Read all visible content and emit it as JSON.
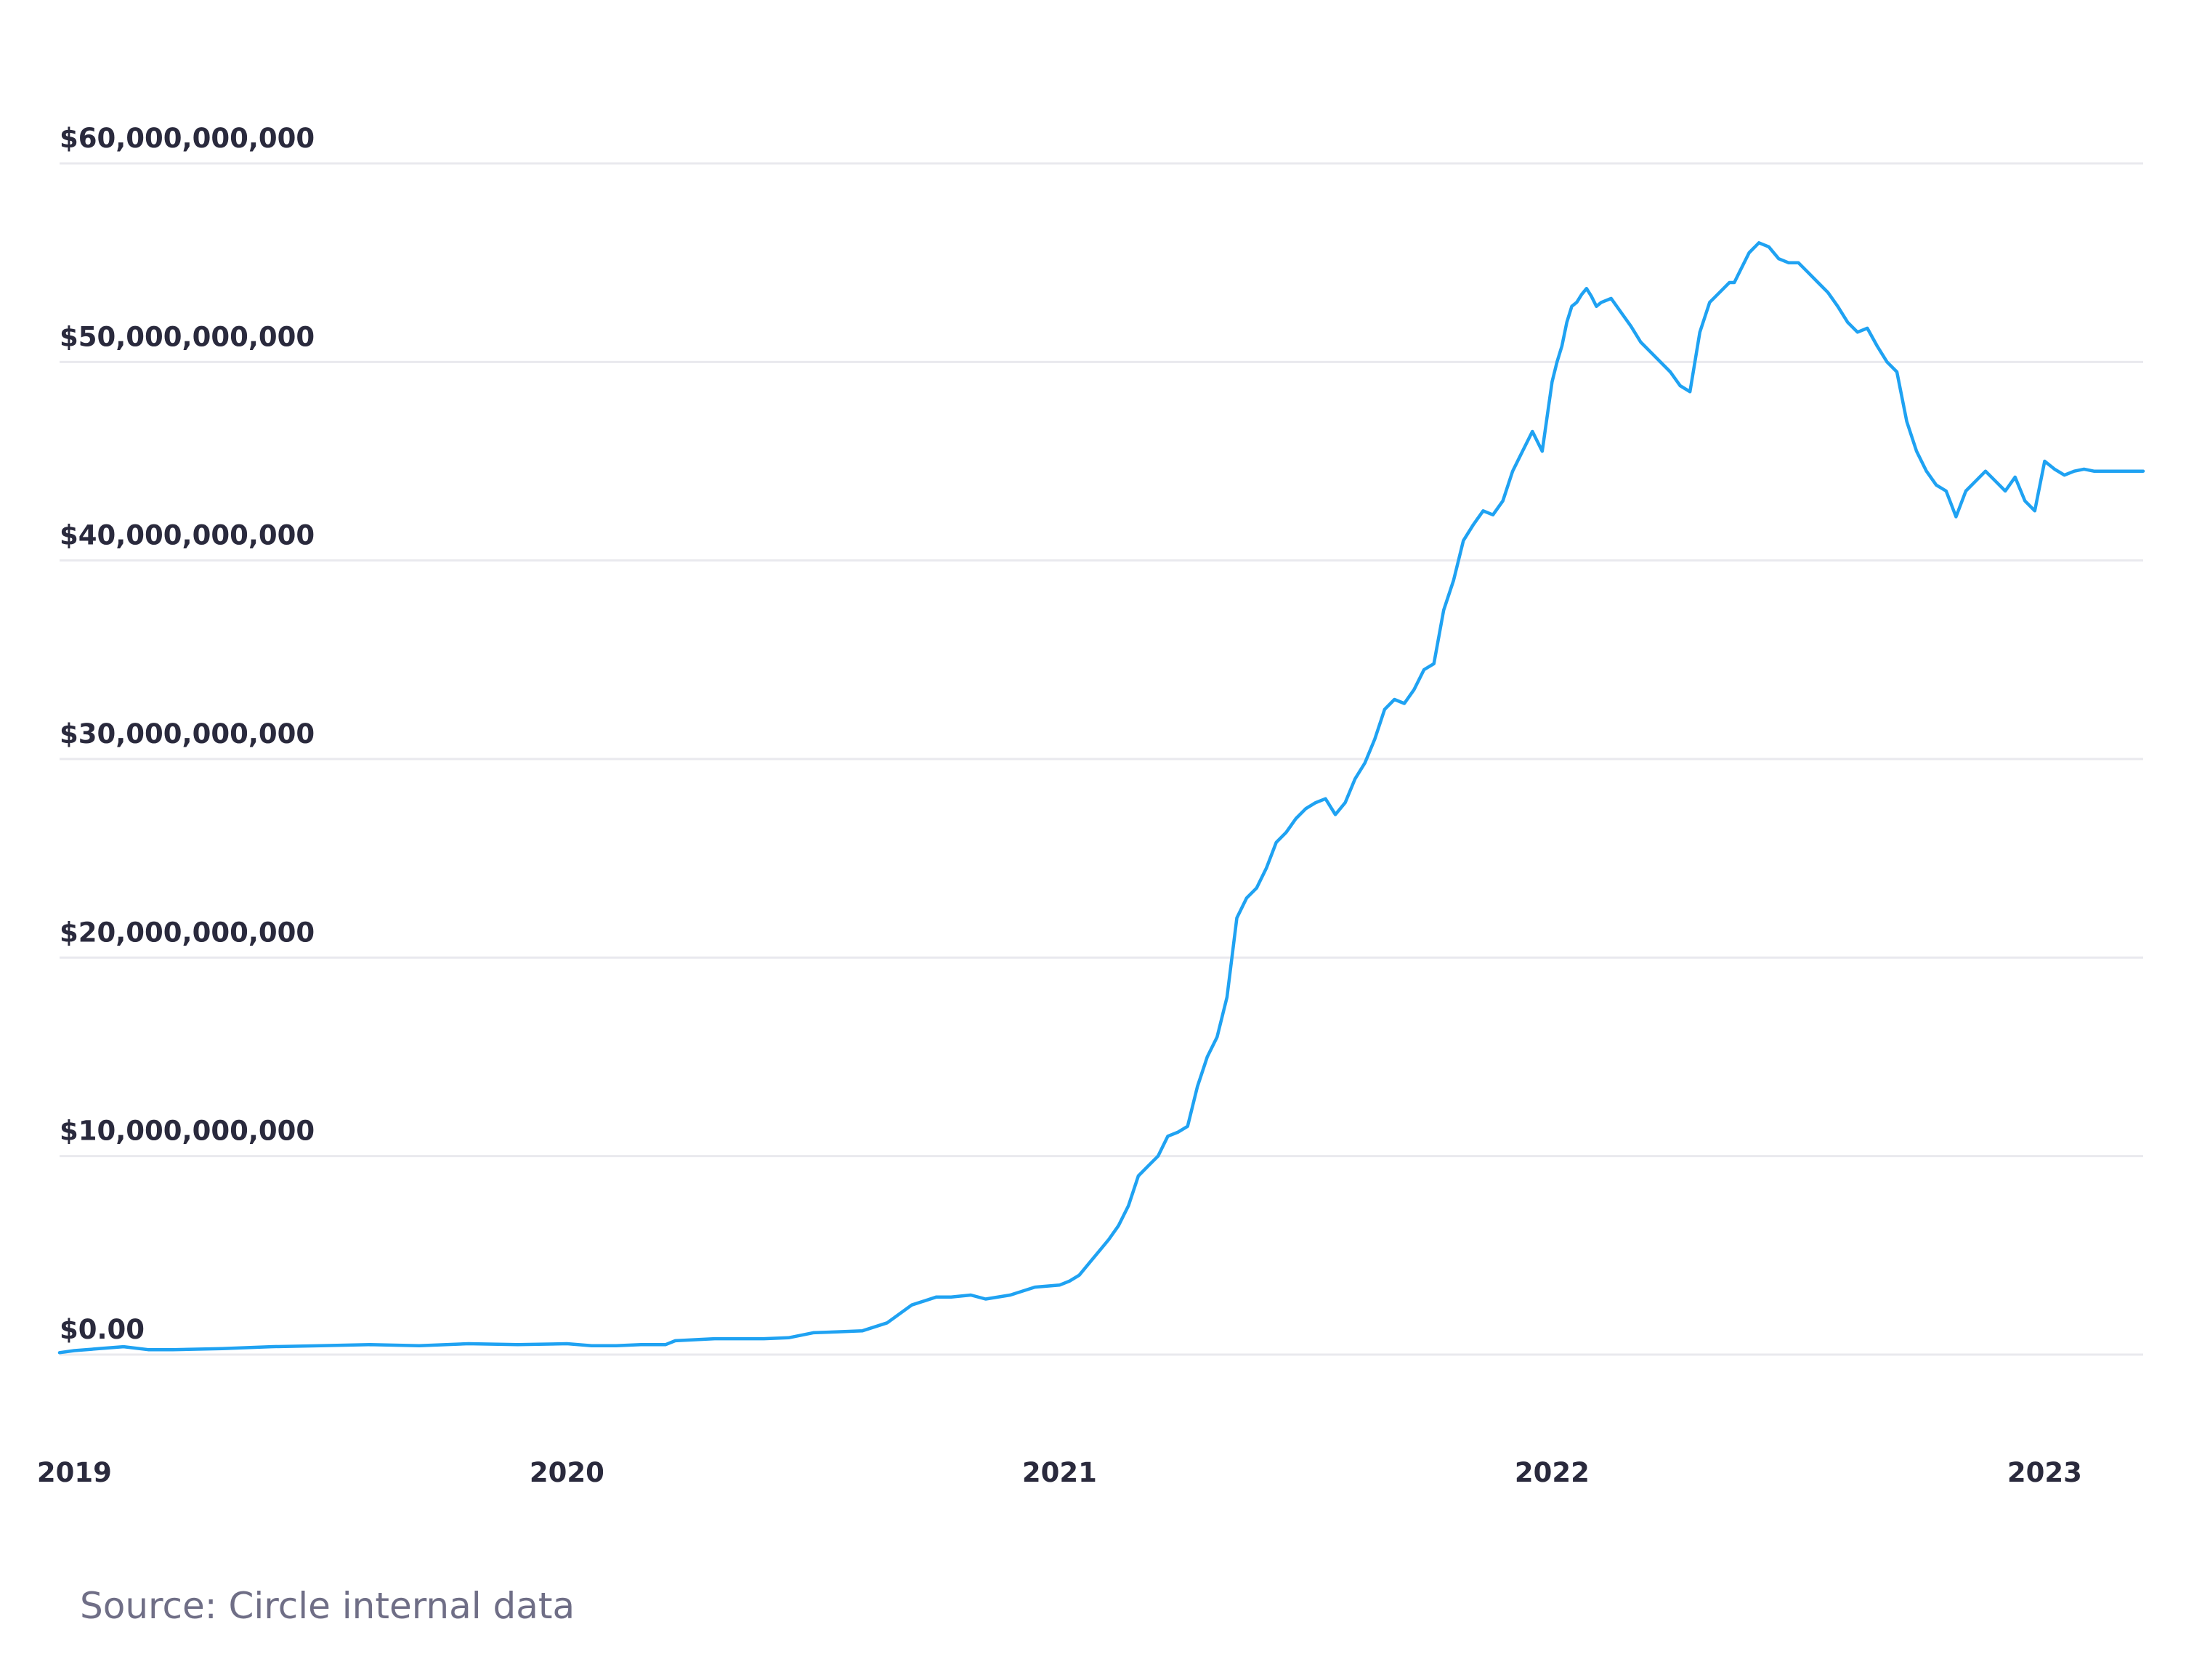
{
  "colors": {
    "line": "#1fa2f2",
    "text": "#2a2a3d",
    "grid": "#e9e9ee",
    "source": "#6f6e86"
  },
  "source_note": "Source: Circle internal data",
  "chart_data": {
    "type": "line",
    "x_unit": "year",
    "xlim": [
      2018.97,
      2023.2
    ],
    "ylim": [
      0,
      60000000000
    ],
    "y_ticks": [
      0,
      10000000000,
      20000000000,
      30000000000,
      40000000000,
      50000000000,
      60000000000
    ],
    "y_tick_labels": [
      "$0.00",
      "$10,000,000,000",
      "$20,000,000,000",
      "$30,000,000,000",
      "$40,000,000,000",
      "$50,000,000,000",
      "$60,000,000,000"
    ],
    "x_ticks": [
      2019,
      2020,
      2021,
      2022,
      2023
    ],
    "x_tick_labels": [
      "2019",
      "2020",
      "2021",
      "2022",
      "2023"
    ],
    "grid": true,
    "series": [
      {
        "x": [
          2018.97,
          2019.0,
          2019.05,
          2019.1,
          2019.15,
          2019.2,
          2019.3,
          2019.4,
          2019.5,
          2019.6,
          2019.7,
          2019.8,
          2019.9,
          2020.0,
          2020.05,
          2020.1,
          2020.15,
          2020.2,
          2020.22,
          2020.3,
          2020.4,
          2020.45,
          2020.5,
          2020.55,
          2020.6,
          2020.65,
          2020.7,
          2020.75,
          2020.78,
          2020.82,
          2020.85,
          2020.9,
          2020.95,
          2021.0,
          2021.02,
          2021.04,
          2021.06,
          2021.08,
          2021.1,
          2021.12,
          2021.14,
          2021.16,
          2021.18,
          2021.2,
          2021.22,
          2021.24,
          2021.26,
          2021.28,
          2021.3,
          2021.32,
          2021.34,
          2021.36,
          2021.38,
          2021.4,
          2021.42,
          2021.44,
          2021.46,
          2021.48,
          2021.5,
          2021.52,
          2021.54,
          2021.56,
          2021.58,
          2021.6,
          2021.62,
          2021.64,
          2021.66,
          2021.68,
          2021.7,
          2021.72,
          2021.74,
          2021.76,
          2021.78,
          2021.8,
          2021.82,
          2021.84,
          2021.86,
          2021.88,
          2021.9,
          2021.92,
          2021.94,
          2021.96,
          2021.98,
          2022.0,
          2022.01,
          2022.02,
          2022.03,
          2022.04,
          2022.05,
          2022.06,
          2022.07,
          2022.08,
          2022.09,
          2022.1,
          2022.12,
          2022.14,
          2022.16,
          2022.18,
          2022.2,
          2022.22,
          2022.24,
          2022.26,
          2022.28,
          2022.3,
          2022.32,
          2022.34,
          2022.36,
          2022.37,
          2022.38,
          2022.4,
          2022.42,
          2022.44,
          2022.46,
          2022.48,
          2022.5,
          2022.52,
          2022.54,
          2022.56,
          2022.58,
          2022.6,
          2022.62,
          2022.64,
          2022.66,
          2022.68,
          2022.7,
          2022.72,
          2022.74,
          2022.76,
          2022.78,
          2022.8,
          2022.82,
          2022.84,
          2022.86,
          2022.88,
          2022.9,
          2022.92,
          2022.94,
          2022.96,
          2022.98,
          2023.0,
          2023.02,
          2023.04,
          2023.06,
          2023.08,
          2023.1,
          2023.12,
          2023.14,
          2023.16,
          2023.18,
          2023.2
        ],
        "y": [
          100000000,
          200000000,
          300000000,
          400000000,
          250000000,
          250000000,
          300000000,
          400000000,
          450000000,
          500000000,
          450000000,
          550000000,
          500000000,
          550000000,
          450000000,
          450000000,
          500000000,
          500000000,
          700000000,
          800000000,
          800000000,
          850000000,
          1100000000,
          1150000000,
          1200000000,
          1600000000,
          2500000000,
          2900000000,
          2900000000,
          3000000000,
          2800000000,
          3000000000,
          3400000000,
          3500000000,
          3700000000,
          4000000000,
          4600000000,
          5200000000,
          5800000000,
          6500000000,
          7500000000,
          9000000000,
          9500000000,
          10000000000,
          11000000000,
          11200000000,
          11500000000,
          13500000000,
          15000000000,
          16000000000,
          18000000000,
          22000000000,
          23000000000,
          23500000000,
          24500000000,
          25800000000,
          26300000000,
          27000000000,
          27500000000,
          27800000000,
          28000000000,
          27200000000,
          27800000000,
          29000000000,
          29800000000,
          31000000000,
          32500000000,
          33000000000,
          32800000000,
          33500000000,
          34500000000,
          34800000000,
          37500000000,
          39000000000,
          41000000000,
          41800000000,
          42500000000,
          42300000000,
          43000000000,
          44500000000,
          45500000000,
          46500000000,
          45500000000,
          49000000000,
          50000000000,
          50800000000,
          52000000000,
          52800000000,
          53000000000,
          53400000000,
          53700000000,
          53300000000,
          52800000000,
          53000000000,
          53200000000,
          52500000000,
          51800000000,
          51000000000,
          50500000000,
          50000000000,
          49500000000,
          48800000000,
          48500000000,
          51500000000,
          53000000000,
          53500000000,
          54000000000,
          54000000000,
          54500000000,
          55500000000,
          56000000000,
          55800000000,
          55200000000,
          55000000000,
          55000000000,
          54500000000,
          54000000000,
          53500000000,
          52800000000,
          52000000000,
          51500000000,
          51700000000,
          50800000000,
          50000000000,
          49500000000,
          47000000000,
          45500000000,
          44500000000,
          43800000000,
          43500000000,
          42200000000,
          43500000000,
          44000000000,
          44500000000,
          44000000000,
          43500000000,
          44200000000,
          43000000000,
          42500000000,
          45000000000,
          44600000000,
          44300000000,
          44500000000,
          44600000000,
          44500000000,
          44500000000,
          44500000000,
          44500000000,
          44500000000,
          44500000000
        ]
      }
    ]
  }
}
